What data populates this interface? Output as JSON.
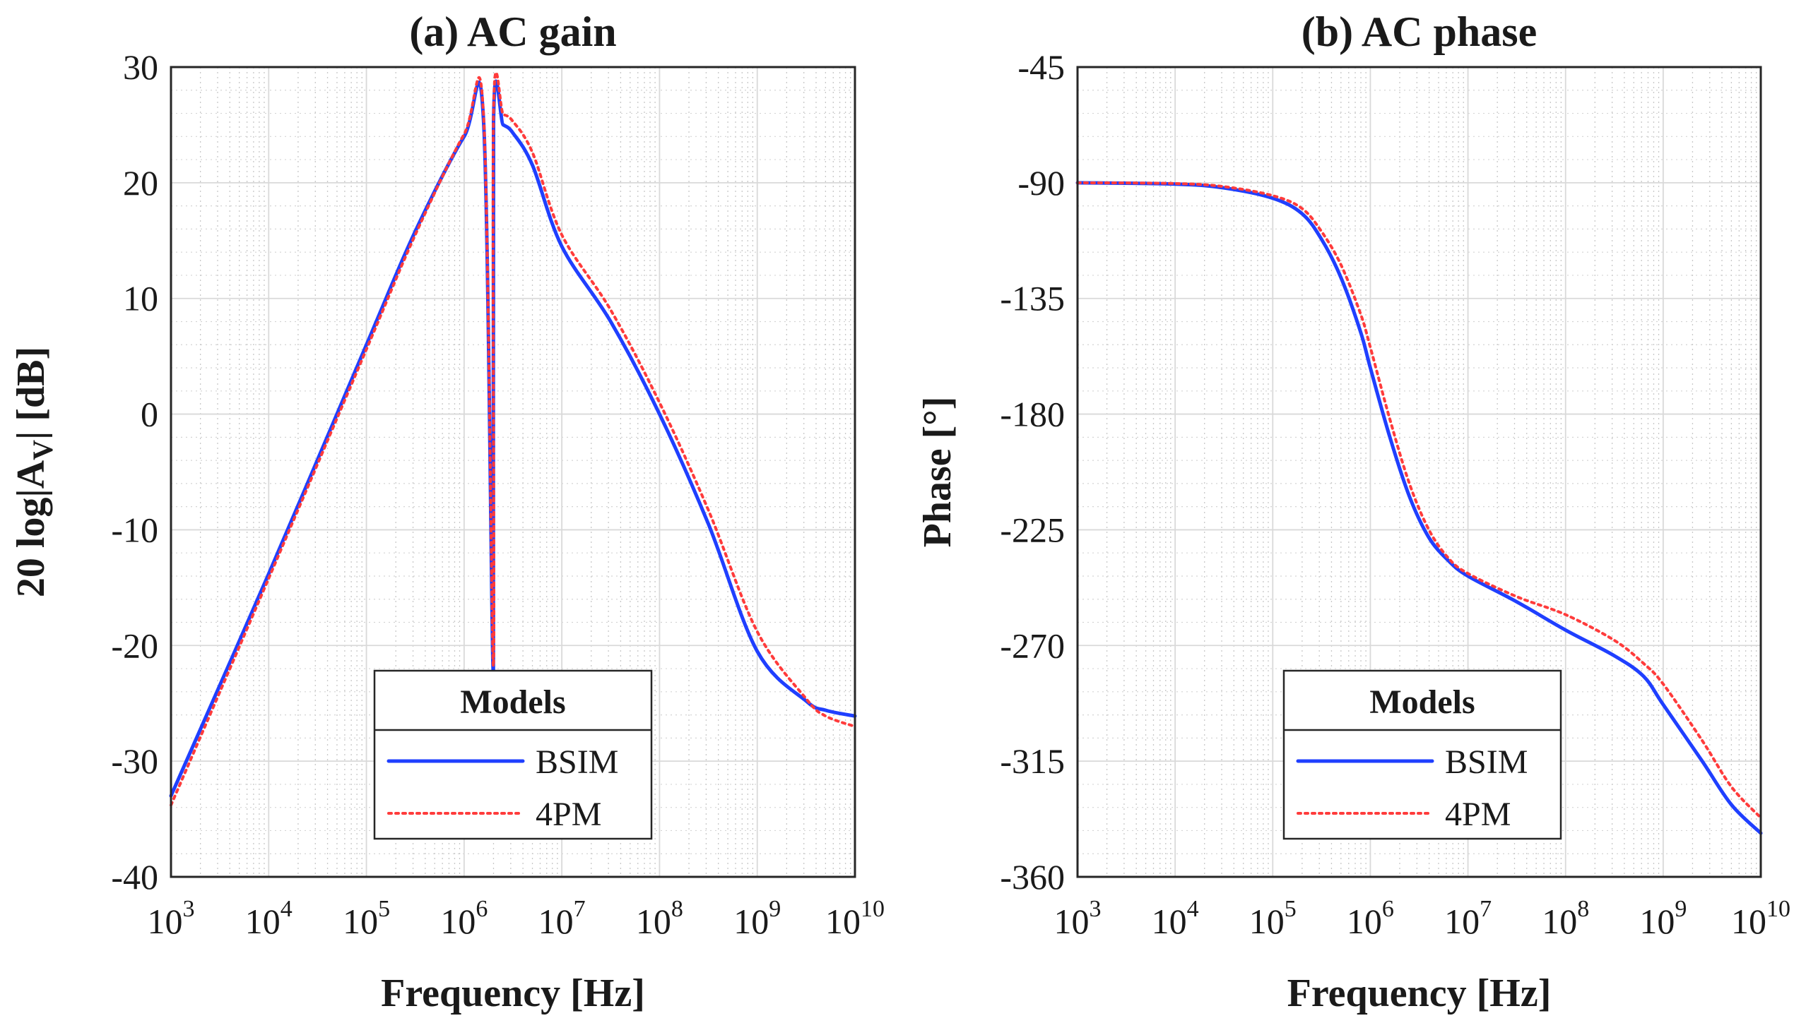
{
  "chart_data": [
    {
      "type": "line",
      "title": "(a) AC gain",
      "xlabel": "Frequency [Hz]",
      "ylabel": "20 log|A_V| [dB]",
      "ylabel_parts": [
        "20 log|A",
        "V",
        "| [dB]"
      ],
      "xscale": "log",
      "xlim": [
        1000,
        10000000000
      ],
      "ylim": [
        -40,
        30
      ],
      "grid": "on (major and minor)",
      "xticks": [
        1000,
        10000,
        100000,
        1000000,
        10000000,
        100000000,
        1000000000,
        10000000000
      ],
      "xtick_labels": [
        [
          "10",
          "3"
        ],
        [
          "10",
          "4"
        ],
        [
          "10",
          "5"
        ],
        [
          "10",
          "6"
        ],
        [
          "10",
          "7"
        ],
        [
          "10",
          "8"
        ],
        [
          "10",
          "9"
        ],
        [
          "10",
          "10"
        ]
      ],
      "yticks": [
        30,
        20,
        10,
        0,
        -10,
        -20,
        -30,
        -40
      ],
      "ytick_labels": [
        "30",
        "20",
        "10",
        "0",
        "-10",
        "-20",
        "-30",
        "-40"
      ],
      "legend": {
        "title": "Models",
        "location": "bottom-right",
        "entries": [
          "BSIM",
          "4PM"
        ]
      },
      "series": [
        {
          "name": "BSIM",
          "color": "#1f3fff",
          "style": "solid",
          "x": [
            1000,
            10000,
            100000,
            316228,
            1000000,
            1584893,
            2000000,
            2511886,
            3162278,
            5011872,
            10000000,
            31622777,
            100000000,
            316227766,
            1000000000,
            1995262,
            3162277660,
            5011872336,
            10000000000
          ],
          "y": [
            -33.0,
            -13.8,
            6.0,
            15.8,
            24.0,
            25.2,
            25.3,
            25.0,
            24.3,
            21.5,
            14.5,
            8.0,
            0.0,
            -9.5,
            -20.5,
            -22.5,
            -24.8,
            -25.6,
            -26.1
          ]
        },
        {
          "name": "4PM",
          "color": "#ff3b3b",
          "style": "dotted",
          "x": [
            1000,
            10000,
            100000,
            316228,
            1000000,
            1584893,
            2000000,
            2511886,
            3162278,
            5011872,
            10000000,
            31622777,
            100000000,
            316227766,
            1000000000,
            1995262,
            3162277660,
            5011872336,
            10000000000
          ],
          "y": [
            -33.8,
            -14.2,
            5.6,
            15.5,
            24.2,
            25.7,
            26.0,
            25.9,
            25.3,
            22.6,
            15.5,
            9.0,
            1.0,
            -8.3,
            -18.8,
            -21.8,
            -24.6,
            -26.1,
            -27.0
          ]
        }
      ]
    },
    {
      "type": "line",
      "title": "(b) AC phase",
      "xlabel": "Frequency [Hz]",
      "ylabel": "Phase [°]",
      "xscale": "log",
      "xlim": [
        1000,
        10000000000
      ],
      "ylim": [
        -360,
        -45
      ],
      "grid": "on (major and minor)",
      "xticks": [
        1000,
        10000,
        100000,
        1000000,
        10000000,
        100000000,
        1000000000,
        10000000000
      ],
      "xtick_labels": [
        [
          "10",
          "3"
        ],
        [
          "10",
          "4"
        ],
        [
          "10",
          "5"
        ],
        [
          "10",
          "6"
        ],
        [
          "10",
          "7"
        ],
        [
          "10",
          "8"
        ],
        [
          "10",
          "9"
        ],
        [
          "10",
          "10"
        ]
      ],
      "yticks": [
        -45,
        -90,
        -135,
        -180,
        -225,
        -270,
        -315,
        -360
      ],
      "ytick_labels": [
        "-45",
        "-90",
        "-135",
        "-180",
        "-225",
        "-270",
        "-315",
        "-360"
      ],
      "legend": {
        "title": "Models",
        "location": "bottom-right",
        "entries": [
          "BSIM",
          "4PM"
        ]
      },
      "series": [
        {
          "name": "BSIM",
          "color": "#1f3fff",
          "style": "solid",
          "x": [
            1000,
            10000,
            31622,
            100000,
            199526,
            316228,
            501187,
            794328,
            1000000,
            1584893,
            2511886,
            3981072,
            6309573,
            10000000,
            31622777,
            100000000,
            316227766,
            630957344,
            1000000000,
            2511886432,
            5011872336,
            10000000000
          ],
          "y": [
            -90,
            -90.5,
            -92,
            -96,
            -102,
            -112,
            -127,
            -148,
            -162,
            -189,
            -212,
            -228,
            -237,
            -243,
            -253,
            -264,
            -274,
            -282,
            -293,
            -315,
            -332,
            -343
          ]
        },
        {
          "name": "4PM",
          "color": "#ff3b3b",
          "style": "dotted",
          "x": [
            1000,
            10000,
            31622,
            100000,
            199526,
            316228,
            501187,
            794328,
            1000000,
            1584893,
            2511886,
            3981072,
            6309573,
            10000000,
            31622777,
            100000000,
            316227766,
            630957344,
            1000000000,
            2511886432,
            5011872336,
            10000000000
          ],
          "y": [
            -90,
            -90.3,
            -91.5,
            -95,
            -100,
            -109,
            -122,
            -141,
            -154,
            -182,
            -207,
            -225,
            -236,
            -242,
            -251,
            -258,
            -268,
            -277,
            -285,
            -307,
            -325,
            -337
          ]
        }
      ]
    }
  ]
}
